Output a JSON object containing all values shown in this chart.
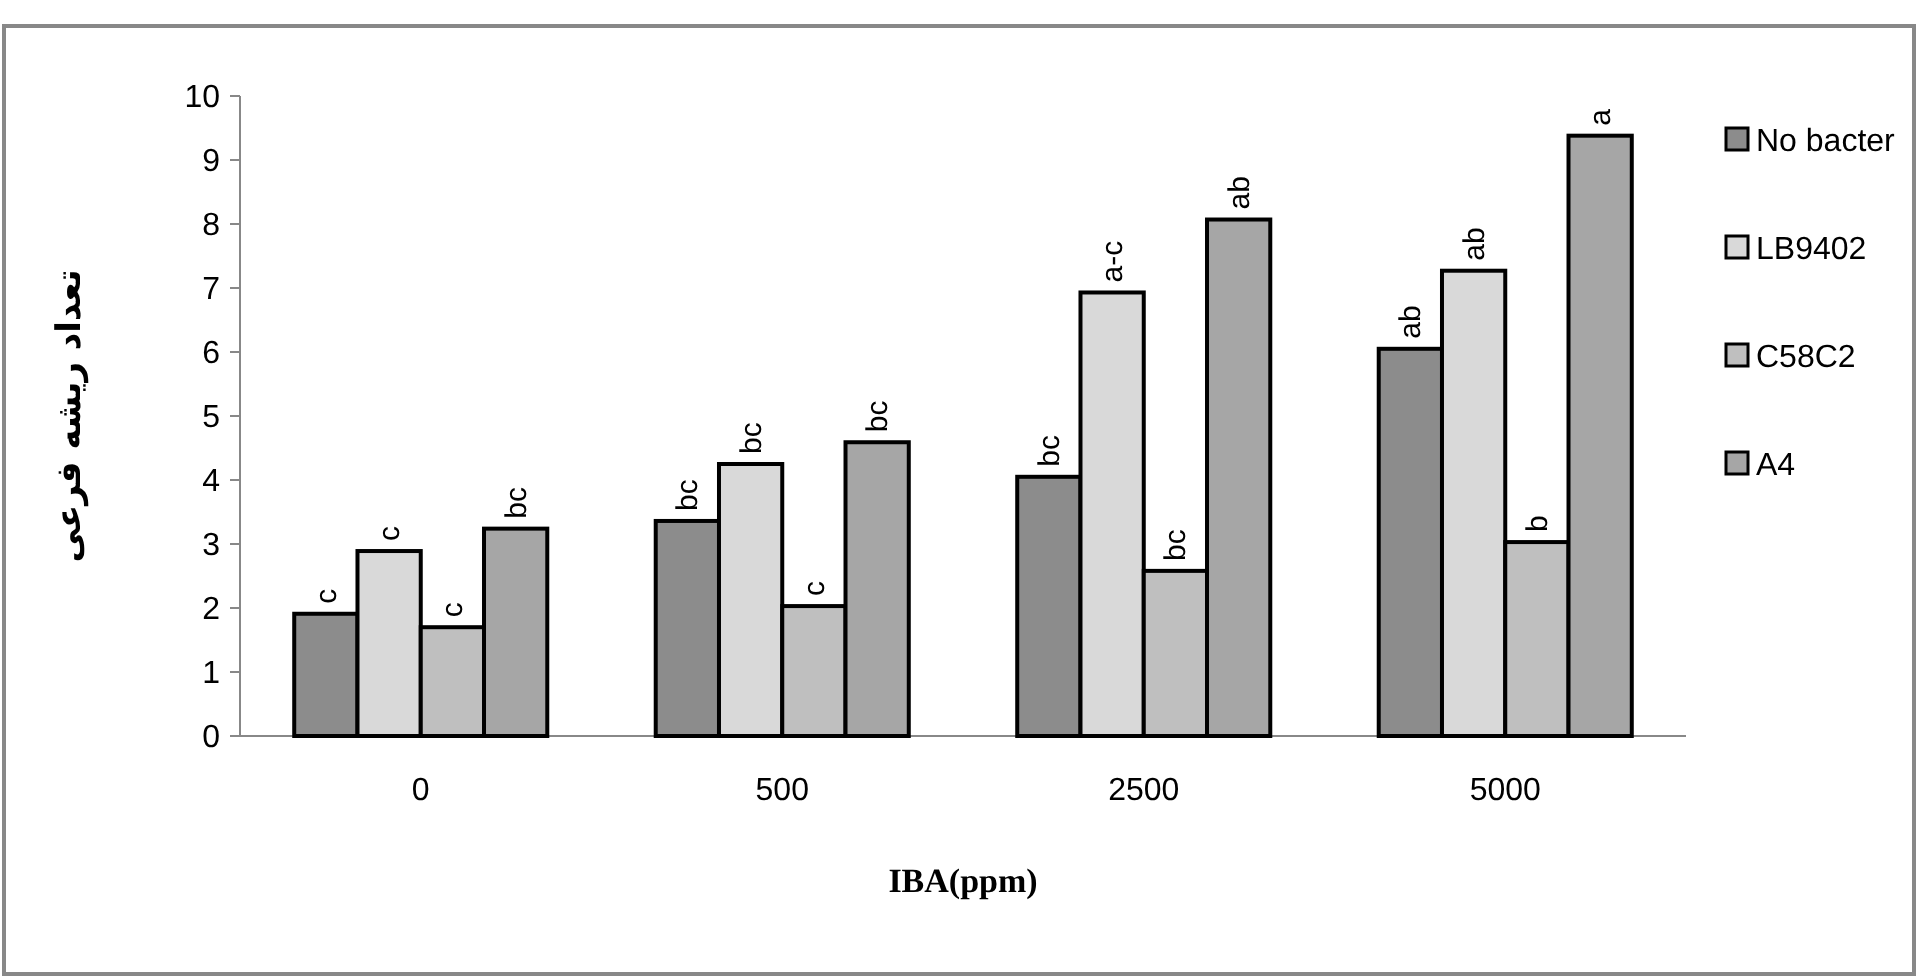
{
  "chart_data": {
    "type": "bar",
    "xlabel": "IBA(ppm)",
    "ylabel": "تعداد ریشه فرعی",
    "categories": [
      "0",
      "500",
      "2500",
      "5000"
    ],
    "series": [
      {
        "name": "No bacter",
        "color": "#8c8c8c",
        "values": [
          1.91,
          3.36,
          4.05,
          6.05
        ],
        "value_labels": [
          "c",
          "bc",
          "bc",
          "ab"
        ]
      },
      {
        "name": "LB9402",
        "color": "#d9d9d9",
        "values": [
          2.89,
          4.25,
          6.93,
          7.27
        ],
        "value_labels": [
          "c",
          "bc",
          "a-c",
          "ab"
        ]
      },
      {
        "name": "C58C2",
        "color": "#bfbfbf",
        "values": [
          1.7,
          2.03,
          2.58,
          3.03
        ],
        "value_labels": [
          "c",
          "c",
          "bc",
          "b"
        ]
      },
      {
        "name": "A4",
        "color": "#a6a6a6",
        "values": [
          3.24,
          4.59,
          8.07,
          9.38
        ],
        "value_labels": [
          "bc",
          "bc",
          "ab",
          "a"
        ]
      }
    ],
    "ylim": [
      0,
      10
    ],
    "yticks": [
      0,
      1,
      2,
      3,
      4,
      5,
      6,
      7,
      8,
      9,
      10
    ],
    "grid": false,
    "legend": "right"
  }
}
